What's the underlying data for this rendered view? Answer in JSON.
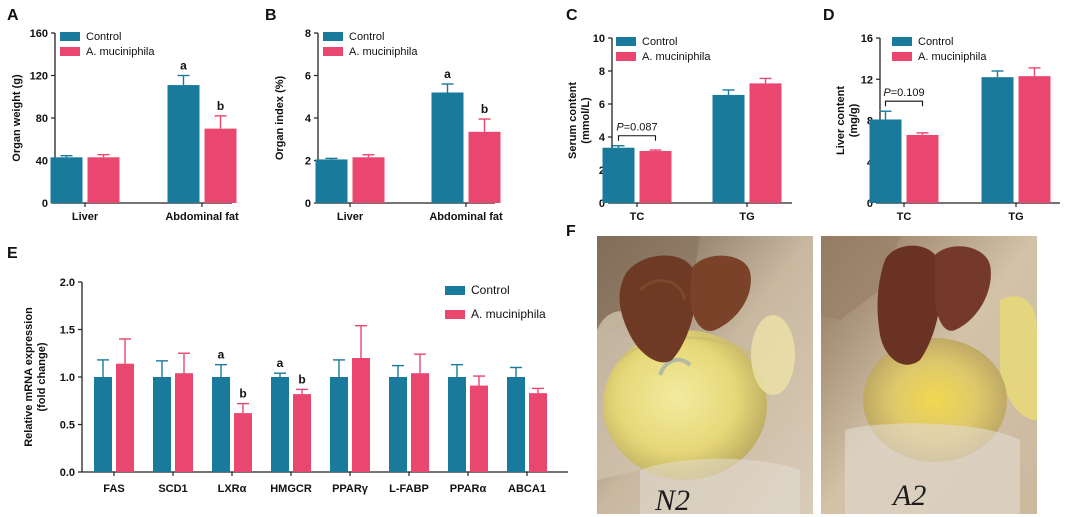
{
  "colors": {
    "control": "#1a7a9c",
    "treatment": "#e9476f",
    "axis": "#222222"
  },
  "chart_data": [
    {
      "panel": "A",
      "type": "bar",
      "categories": [
        "Liver",
        "Abdominal fat"
      ],
      "series": [
        {
          "name": "Control",
          "values": [
            43,
            111
          ],
          "errors": [
            1.5,
            9
          ],
          "letters": [
            "",
            "a"
          ]
        },
        {
          "name": "A. muciniphila",
          "values": [
            43,
            70
          ],
          "errors": [
            2.5,
            12
          ],
          "letters": [
            "",
            "b"
          ]
        }
      ],
      "ylabel": "Organ weight (g)",
      "ylim": [
        0,
        160
      ],
      "yticks": [
        "0",
        "40",
        "80",
        "120",
        "160"
      ],
      "legend": [
        "Control",
        "A. muciniphila"
      ],
      "annotation": null
    },
    {
      "panel": "B",
      "type": "bar",
      "categories": [
        "Liver",
        "Abdominal fat"
      ],
      "series": [
        {
          "name": "Control",
          "values": [
            2.05,
            5.2
          ],
          "errors": [
            0.05,
            0.4
          ],
          "letters": [
            "",
            "a"
          ]
        },
        {
          "name": "A. muciniphila",
          "values": [
            2.15,
            3.35
          ],
          "errors": [
            0.12,
            0.6
          ],
          "letters": [
            "",
            "b"
          ]
        }
      ],
      "ylabel": "Organ index (%)",
      "ylim": [
        0,
        8
      ],
      "yticks": [
        "0",
        "2",
        "4",
        "6",
        "8"
      ],
      "legend": [
        "Control",
        "A. muciniphila"
      ],
      "annotation": null
    },
    {
      "panel": "C",
      "type": "bar",
      "categories": [
        "TC",
        "TG"
      ],
      "series": [
        {
          "name": "Control",
          "values": [
            3.35,
            6.55
          ],
          "errors": [
            0.12,
            0.3
          ],
          "letters": [
            "",
            ""
          ]
        },
        {
          "name": "A. muciniphila",
          "values": [
            3.15,
            7.25
          ],
          "errors": [
            0.06,
            0.3
          ],
          "letters": [
            "",
            ""
          ]
        }
      ],
      "ylabel": "Serum content (mmol/L)",
      "ylabel_lines": [
        "Serum content",
        "(mmol/L)"
      ],
      "ylim": [
        0,
        10
      ],
      "yticks": [
        "0",
        "2",
        "4",
        "6",
        "8",
        "10"
      ],
      "legend": [
        "Control",
        "A. muciniphila"
      ],
      "annotation": {
        "p": "P",
        "rest": "=0.087",
        "category": 0
      }
    },
    {
      "panel": "D",
      "type": "bar",
      "categories": [
        "TC",
        "TG"
      ],
      "series": [
        {
          "name": "Control",
          "values": [
            8.1,
            12.2
          ],
          "errors": [
            0.8,
            0.6
          ],
          "letters": [
            "",
            ""
          ]
        },
        {
          "name": "A. muciniphila",
          "values": [
            6.6,
            12.3
          ],
          "errors": [
            0.2,
            0.8
          ],
          "letters": [
            "",
            ""
          ]
        }
      ],
      "ylabel": "Liver content (mg/g)",
      "ylabel_lines": [
        "Liver content",
        "(mg/g)"
      ],
      "ylim": [
        0,
        16
      ],
      "yticks": [
        "0",
        "4",
        "8",
        "12",
        "16"
      ],
      "legend": [
        "Control",
        "A. muciniphila"
      ],
      "annotation": {
        "p": "P",
        "rest": "=0.109",
        "category": 0
      }
    },
    {
      "panel": "E",
      "type": "bar",
      "categories": [
        "FAS",
        "SCD1",
        "LXRα",
        "HMGCR",
        "PPARγ",
        "L-FABP",
        "PPARα",
        "ABCA1"
      ],
      "series": [
        {
          "name": "Control",
          "values": [
            1.0,
            1.0,
            1.0,
            1.0,
            1.0,
            1.0,
            1.0,
            1.0
          ],
          "errors": [
            0.18,
            0.17,
            0.13,
            0.04,
            0.18,
            0.12,
            0.13,
            0.1
          ],
          "letters": [
            "",
            "",
            "a",
            "a",
            "",
            "",
            "",
            ""
          ]
        },
        {
          "name": "A. muciniphila",
          "values": [
            1.14,
            1.04,
            0.62,
            0.82,
            1.2,
            1.04,
            0.91,
            0.83
          ],
          "errors": [
            0.26,
            0.21,
            0.1,
            0.05,
            0.34,
            0.2,
            0.1,
            0.05
          ],
          "letters": [
            "",
            "",
            "b",
            "b",
            "",
            "",
            "",
            ""
          ]
        }
      ],
      "ylabel": "Relative mRNA expression (fold change)",
      "ylabel_lines": [
        "Relative mRNA expression",
        "(fold change)"
      ],
      "ylim": [
        0,
        2.0
      ],
      "yticks": [
        "0.0",
        "0.5",
        "1.0",
        "1.5",
        "2.0"
      ],
      "legend": [
        "Control",
        "A. muciniphila"
      ],
      "annotation": null
    }
  ],
  "photos": {
    "panel": "F",
    "labels": [
      "N2",
      "A2"
    ]
  }
}
